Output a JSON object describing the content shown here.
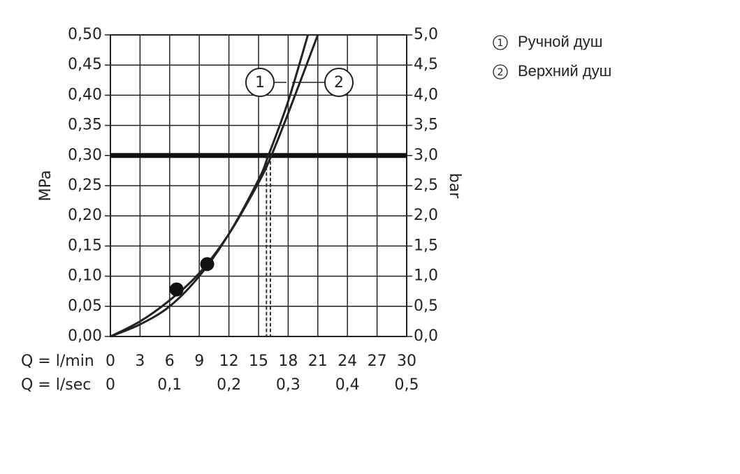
{
  "chart_data": {
    "type": "line",
    "x_label_min": "Q = l/min",
    "x_label_sec": "Q = l/sec",
    "y_label": "MPa",
    "y2_label": "bar",
    "xlim": [
      0,
      30
    ],
    "xticks": [
      0,
      3,
      6,
      9,
      12,
      15,
      18,
      21,
      24,
      27,
      30
    ],
    "x2lim": [
      0,
      0.5
    ],
    "x2ticks": [
      {
        "value": 0,
        "label": "0"
      },
      {
        "value": 0.1,
        "label": "0,1"
      },
      {
        "value": 0.2,
        "label": "0,2"
      },
      {
        "value": 0.3,
        "label": "0,3"
      },
      {
        "value": 0.4,
        "label": "0,4"
      },
      {
        "value": 0.5,
        "label": "0,5"
      }
    ],
    "ylim": [
      0,
      0.5
    ],
    "yticks": [
      {
        "value": 0,
        "label": "0,00"
      },
      {
        "value": 0.05,
        "label": "0,05"
      },
      {
        "value": 0.1,
        "label": "0,10"
      },
      {
        "value": 0.15,
        "label": "0,15"
      },
      {
        "value": 0.2,
        "label": "0,20"
      },
      {
        "value": 0.25,
        "label": "0,25"
      },
      {
        "value": 0.3,
        "label": "0,30"
      },
      {
        "value": 0.35,
        "label": "0,35"
      },
      {
        "value": 0.4,
        "label": "0,40"
      },
      {
        "value": 0.45,
        "label": "0,45"
      },
      {
        "value": 0.5,
        "label": "0,50"
      }
    ],
    "y2lim": [
      0,
      5
    ],
    "y2ticks": [
      {
        "value": 0,
        "label": "0,0"
      },
      {
        "value": 0.5,
        "label": "0,5"
      },
      {
        "value": 1,
        "label": "1,0"
      },
      {
        "value": 1.5,
        "label": "1,5"
      },
      {
        "value": 2,
        "label": "2,0"
      },
      {
        "value": 2.5,
        "label": "2,5"
      },
      {
        "value": 3,
        "label": "3,0"
      },
      {
        "value": 3.5,
        "label": "3,5"
      },
      {
        "value": 4,
        "label": "4,0"
      },
      {
        "value": 4.5,
        "label": "4,5"
      },
      {
        "value": 5,
        "label": "5,0"
      }
    ],
    "grid": true,
    "threshold": 0.3,
    "threshold_x": [
      15.8,
      16.2
    ],
    "series": [
      {
        "name": "Ручной душ",
        "label": "1",
        "color": "#222222",
        "x": [
          0,
          3,
          6,
          9,
          12,
          15,
          16,
          18,
          20
        ],
        "values": [
          0,
          0.02,
          0.05,
          0.1,
          0.17,
          0.26,
          0.3,
          0.39,
          0.5
        ]
      },
      {
        "name": "Верхний душ",
        "label": "2",
        "color": "#222222",
        "x": [
          0,
          3,
          6,
          9,
          12,
          15,
          16.3,
          18,
          21
        ],
        "values": [
          0,
          0.025,
          0.06,
          0.105,
          0.17,
          0.255,
          0.3,
          0.37,
          0.5
        ]
      }
    ],
    "markers": {
      "x": [
        6.7,
        9.8
      ],
      "values": [
        0.078,
        0.12
      ]
    }
  }
}
